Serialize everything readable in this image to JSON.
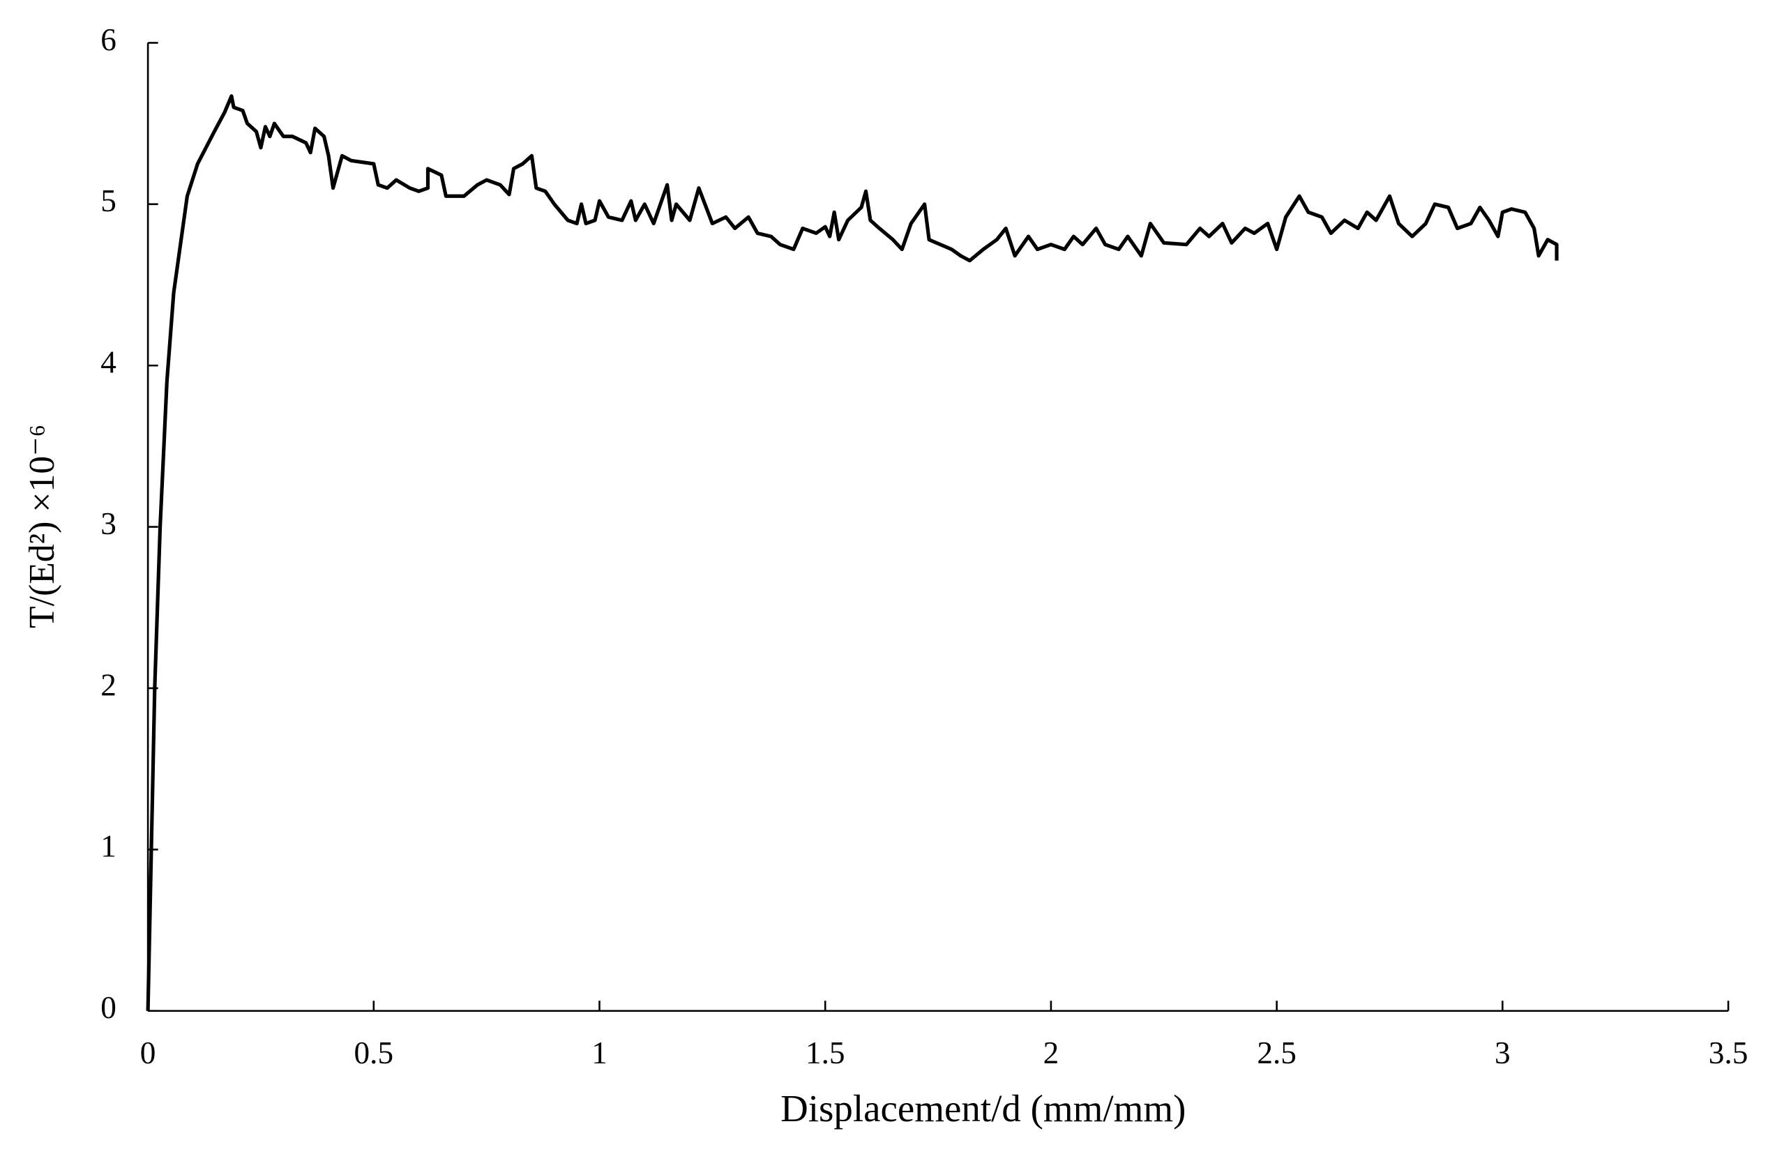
{
  "chart_data": {
    "type": "line",
    "xlabel": "Displacement/d (mm/mm)",
    "ylabel": "T/(Ed²)  ×10⁻⁶",
    "xlim": [
      0,
      3.5
    ],
    "xticks": [
      0,
      0.5,
      1,
      1.5,
      2,
      2.5,
      3,
      3.5
    ],
    "ylim": [
      0,
      6
    ],
    "yticks": [
      0,
      1,
      2,
      3,
      4,
      5,
      6
    ],
    "grid": false,
    "series": [
      {
        "color": "#000000",
        "x": [
          0,
          0.015,
          0.027,
          0.042,
          0.057,
          0.072,
          0.087,
          0.11,
          0.147,
          0.17,
          0.185,
          0.19,
          0.21,
          0.22,
          0.24,
          0.25,
          0.26,
          0.27,
          0.28,
          0.3,
          0.32,
          0.35,
          0.36,
          0.37,
          0.39,
          0.4,
          0.41,
          0.43,
          0.45,
          0.5,
          0.51,
          0.53,
          0.55,
          0.58,
          0.6,
          0.62,
          0.62,
          0.65,
          0.66,
          0.7,
          0.73,
          0.75,
          0.78,
          0.8,
          0.81,
          0.83,
          0.85,
          0.86,
          0.88,
          0.9,
          0.93,
          0.95,
          0.96,
          0.97,
          0.99,
          1.0,
          1.02,
          1.05,
          1.07,
          1.08,
          1.1,
          1.12,
          1.15,
          1.16,
          1.17,
          1.2,
          1.22,
          1.25,
          1.28,
          1.3,
          1.33,
          1.35,
          1.38,
          1.4,
          1.43,
          1.45,
          1.48,
          1.5,
          1.51,
          1.52,
          1.53,
          1.55,
          1.58,
          1.59,
          1.6,
          1.62,
          1.65,
          1.67,
          1.69,
          1.72,
          1.73,
          1.78,
          1.8,
          1.82,
          1.85,
          1.88,
          1.9,
          1.92,
          1.95,
          1.97,
          2.0,
          2.03,
          2.05,
          2.07,
          2.1,
          2.12,
          2.15,
          2.17,
          2.2,
          2.22,
          2.25,
          2.3,
          2.33,
          2.35,
          2.38,
          2.4,
          2.43,
          2.45,
          2.48,
          2.5,
          2.52,
          2.55,
          2.57,
          2.6,
          2.62,
          2.65,
          2.68,
          2.7,
          2.72,
          2.75,
          2.77,
          2.8,
          2.83,
          2.85,
          2.88,
          2.9,
          2.93,
          2.95,
          2.97,
          2.99,
          3.0,
          3.02,
          3.05,
          3.07,
          3.08,
          3.1,
          3.12,
          3.12
        ],
        "values": [
          0,
          2.0,
          3.0,
          3.9,
          4.45,
          4.75,
          5.05,
          5.25,
          5.45,
          5.57,
          5.67,
          5.6,
          5.58,
          5.5,
          5.45,
          5.35,
          5.48,
          5.42,
          5.5,
          5.42,
          5.42,
          5.38,
          5.32,
          5.47,
          5.42,
          5.3,
          5.1,
          5.3,
          5.27,
          5.25,
          5.12,
          5.1,
          5.15,
          5.1,
          5.08,
          5.1,
          5.22,
          5.18,
          5.05,
          5.05,
          5.12,
          5.15,
          5.12,
          5.06,
          5.22,
          5.25,
          5.3,
          5.1,
          5.08,
          5.0,
          4.9,
          4.88,
          5.0,
          4.88,
          4.9,
          5.02,
          4.92,
          4.9,
          5.02,
          4.9,
          5.0,
          4.88,
          5.12,
          4.9,
          5.0,
          4.9,
          5.1,
          4.88,
          4.92,
          4.85,
          4.92,
          4.82,
          4.8,
          4.75,
          4.72,
          4.85,
          4.82,
          4.86,
          4.8,
          4.95,
          4.78,
          4.9,
          4.98,
          5.08,
          4.9,
          4.85,
          4.78,
          4.72,
          4.88,
          5.0,
          4.78,
          4.72,
          4.68,
          4.65,
          4.72,
          4.78,
          4.85,
          4.68,
          4.8,
          4.72,
          4.75,
          4.72,
          4.8,
          4.75,
          4.85,
          4.75,
          4.72,
          4.8,
          4.68,
          4.88,
          4.76,
          4.75,
          4.85,
          4.8,
          4.88,
          4.76,
          4.85,
          4.82,
          4.88,
          4.72,
          4.92,
          5.05,
          4.95,
          4.92,
          4.82,
          4.9,
          4.85,
          4.95,
          4.9,
          5.05,
          4.88,
          4.8,
          4.88,
          5.0,
          4.98,
          4.85,
          4.88,
          4.98,
          4.9,
          4.8,
          4.95,
          4.97,
          4.95,
          4.85,
          4.68,
          4.78,
          4.75,
          4.65
        ]
      }
    ]
  }
}
